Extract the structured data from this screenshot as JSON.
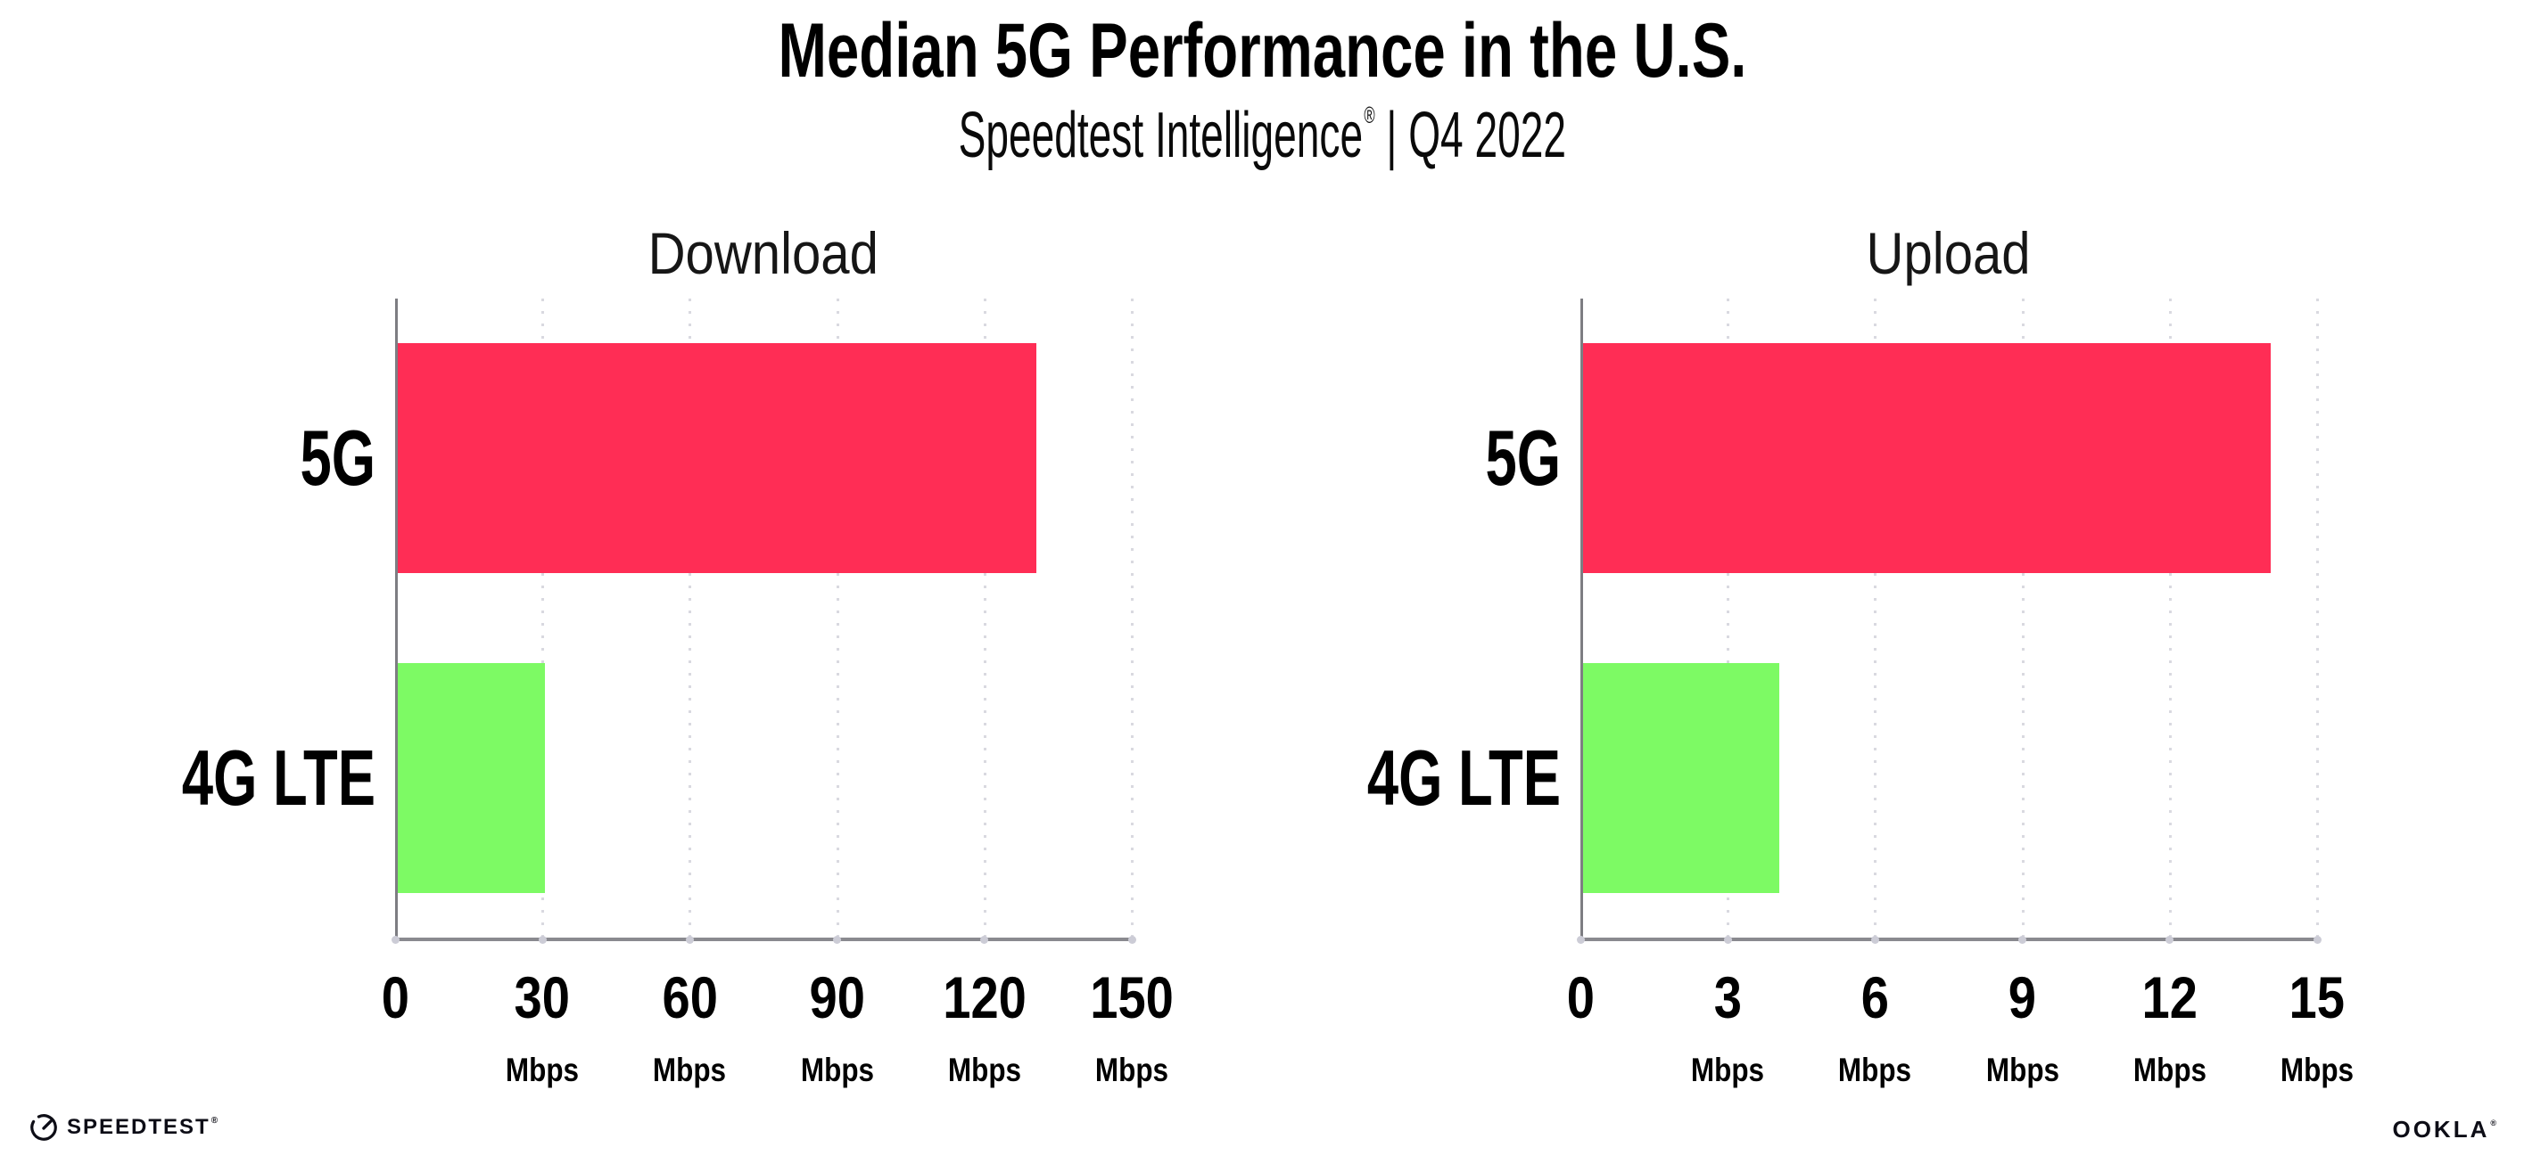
{
  "header": {
    "title": "Median 5G Performance in the U.S.",
    "subtitle_brand": "Speedtest Intelligence",
    "subtitle_reg": "®",
    "subtitle_rest": "| Q4 2022"
  },
  "chart_data": [
    {
      "type": "bar",
      "orientation": "horizontal",
      "title": "Download",
      "categories": [
        "5G",
        "4G LTE"
      ],
      "values": [
        130,
        30
      ],
      "unit": "Mbps",
      "xlim": [
        0,
        150
      ],
      "xticks": [
        0,
        30,
        60,
        90,
        120,
        150
      ],
      "bar_colors": [
        "#FF2D55",
        "#7DFA64"
      ],
      "grid": "dotted vertical gridlines at each tick",
      "legend": "none"
    },
    {
      "type": "bar",
      "orientation": "horizontal",
      "title": "Upload",
      "categories": [
        "5G",
        "4G LTE"
      ],
      "values": [
        14,
        4
      ],
      "unit": "Mbps",
      "xlim": [
        0,
        15
      ],
      "xticks": [
        0,
        3,
        6,
        9,
        12,
        15
      ],
      "bar_colors": [
        "#FF2D55",
        "#7DFA64"
      ],
      "grid": "dotted vertical gridlines at each tick",
      "legend": "none"
    }
  ],
  "footer": {
    "speedtest_label": "SPEEDTEST",
    "speedtest_reg": "®",
    "ookla_label": "OOKLA",
    "ookla_reg": "®"
  },
  "colors": {
    "bar_5g": "#FF2D55",
    "bar_4g_lte": "#7DFA64",
    "axis_line": "#8A8A8F",
    "spine": "#7D7D82",
    "grid_dot": "#D9D9E0",
    "tick_dot": "#CCCCD6",
    "text": "#000000",
    "background": "#FFFFFF"
  }
}
